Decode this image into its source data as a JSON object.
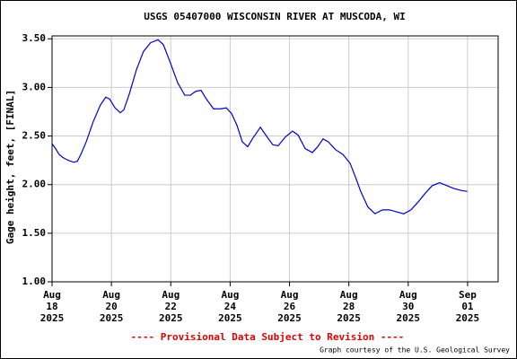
{
  "chart_data": {
    "type": "line",
    "title": "USGS 05407000 WISCONSIN RIVER AT MUSCODA, WI",
    "y_label": "Gage height, feet, [FINAL]",
    "footer_note": "---- Provisional Data Subject to Revision ----",
    "credit": "Graph courtesy of the U.S. Geological Survey",
    "x": [
      18.0,
      18.12,
      18.24,
      18.36,
      18.54,
      18.73,
      18.85,
      18.97,
      19.15,
      19.39,
      19.63,
      19.81,
      19.94,
      20.12,
      20.3,
      20.42,
      20.6,
      20.84,
      21.08,
      21.32,
      21.57,
      21.75,
      21.99,
      22.23,
      22.47,
      22.66,
      22.84,
      23.02,
      23.2,
      23.44,
      23.68,
      23.87,
      24.05,
      24.23,
      24.41,
      24.59,
      24.77,
      25.02,
      25.2,
      25.44,
      25.62,
      25.86,
      26.1,
      26.29,
      26.53,
      26.77,
      26.95,
      27.13,
      27.31,
      27.55,
      27.8,
      28.04,
      28.22,
      28.4,
      28.64,
      28.88,
      29.13,
      29.37,
      29.61,
      29.85,
      30.09,
      30.33,
      30.57,
      30.81,
      31.06,
      31.3,
      31.54,
      31.78,
      31.99
    ],
    "series": [
      {
        "name": "Gage height",
        "color": "#0000cc",
        "values": [
          2.42,
          2.37,
          2.31,
          2.28,
          2.25,
          2.23,
          2.24,
          2.31,
          2.44,
          2.65,
          2.82,
          2.9,
          2.88,
          2.79,
          2.74,
          2.77,
          2.93,
          3.18,
          3.37,
          3.46,
          3.49,
          3.44,
          3.25,
          3.05,
          2.92,
          2.92,
          2.96,
          2.97,
          2.88,
          2.78,
          2.78,
          2.79,
          2.73,
          2.61,
          2.44,
          2.39,
          2.48,
          2.59,
          2.51,
          2.41,
          2.4,
          2.49,
          2.55,
          2.51,
          2.37,
          2.33,
          2.39,
          2.47,
          2.44,
          2.36,
          2.31,
          2.22,
          2.08,
          1.93,
          1.77,
          1.7,
          1.74,
          1.74,
          1.72,
          1.7,
          1.74,
          1.82,
          1.91,
          1.99,
          2.02,
          1.99,
          1.96,
          1.94,
          1.93
        ]
      }
    ],
    "xlim": [
      18,
      33.03
    ],
    "xticks": [
      {
        "value": 18,
        "label": [
          "Aug",
          "18",
          "2025"
        ]
      },
      {
        "value": 20,
        "label": [
          "Aug",
          "20",
          "2025"
        ]
      },
      {
        "value": 22,
        "label": [
          "Aug",
          "22",
          "2025"
        ]
      },
      {
        "value": 24,
        "label": [
          "Aug",
          "24",
          "2025"
        ]
      },
      {
        "value": 26,
        "label": [
          "Aug",
          "26",
          "2025"
        ]
      },
      {
        "value": 28,
        "label": [
          "Aug",
          "28",
          "2025"
        ]
      },
      {
        "value": 30,
        "label": [
          "Aug",
          "30",
          "2025"
        ]
      },
      {
        "value": 32,
        "label": [
          "Sep",
          "01",
          "2025"
        ]
      }
    ],
    "ylim": [
      1.0,
      3.53
    ],
    "yticks": [
      {
        "value": 1.0,
        "label": "1.00"
      },
      {
        "value": 1.5,
        "label": "1.50"
      },
      {
        "value": 2.0,
        "label": "2.00"
      },
      {
        "value": 2.5,
        "label": "2.50"
      },
      {
        "value": 3.0,
        "label": "3.00"
      },
      {
        "value": 3.5,
        "label": "3.50"
      }
    ],
    "grid": true
  }
}
